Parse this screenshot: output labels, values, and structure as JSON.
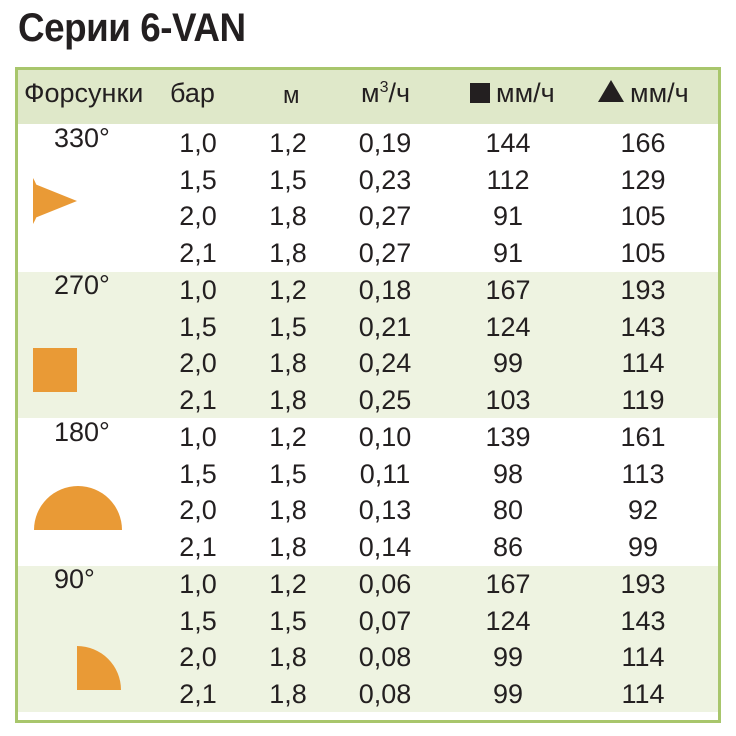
{
  "title": "Серии 6-VAN",
  "colors": {
    "frame_border": "#a8c66c",
    "header_bg": "#dfe8c9",
    "band_bg": "#eef3e1",
    "nozzle_fill": "#e99a36"
  },
  "headers": {
    "nozzles": "Форсунки",
    "pressure": "бар",
    "radius": "м",
    "flow_base": "м",
    "flow_sup": "3",
    "flow_tail": "/ч",
    "square_rate": "мм/ч",
    "triangle_rate": "мм/ч"
  },
  "groups": [
    {
      "angle": "330°",
      "icon": "pie-330-icon",
      "rows": [
        [
          "1,0",
          "1,2",
          "0,19",
          "144",
          "166"
        ],
        [
          "1,5",
          "1,5",
          "0,23",
          "112",
          "129"
        ],
        [
          "2,0",
          "1,8",
          "0,27",
          "91",
          "105"
        ],
        [
          "2,1",
          "1,8",
          "0,27",
          "91",
          "105"
        ]
      ]
    },
    {
      "angle": "270°",
      "icon": "pie-270-icon",
      "rows": [
        [
          "1,0",
          "1,2",
          "0,18",
          "167",
          "193"
        ],
        [
          "1,5",
          "1,5",
          "0,21",
          "124",
          "143"
        ],
        [
          "2,0",
          "1,8",
          "0,24",
          "99",
          "114"
        ],
        [
          "2,1",
          "1,8",
          "0,25",
          "103",
          "119"
        ]
      ]
    },
    {
      "angle": "180°",
      "icon": "half-circle-icon",
      "rows": [
        [
          "1,0",
          "1,2",
          "0,10",
          "139",
          "161"
        ],
        [
          "1,5",
          "1,5",
          "0,11",
          "98",
          "113"
        ],
        [
          "2,0",
          "1,8",
          "0,13",
          "80",
          "92"
        ],
        [
          "2,1",
          "1,8",
          "0,14",
          "86",
          "99"
        ]
      ]
    },
    {
      "angle": "90°",
      "icon": "quarter-circle-icon",
      "rows": [
        [
          "1,0",
          "1,2",
          "0,06",
          "167",
          "193"
        ],
        [
          "1,5",
          "1,5",
          "0,07",
          "124",
          "143"
        ],
        [
          "2,0",
          "1,8",
          "0,08",
          "99",
          "114"
        ],
        [
          "2,1",
          "1,8",
          "0,08",
          "99",
          "114"
        ]
      ]
    }
  ]
}
